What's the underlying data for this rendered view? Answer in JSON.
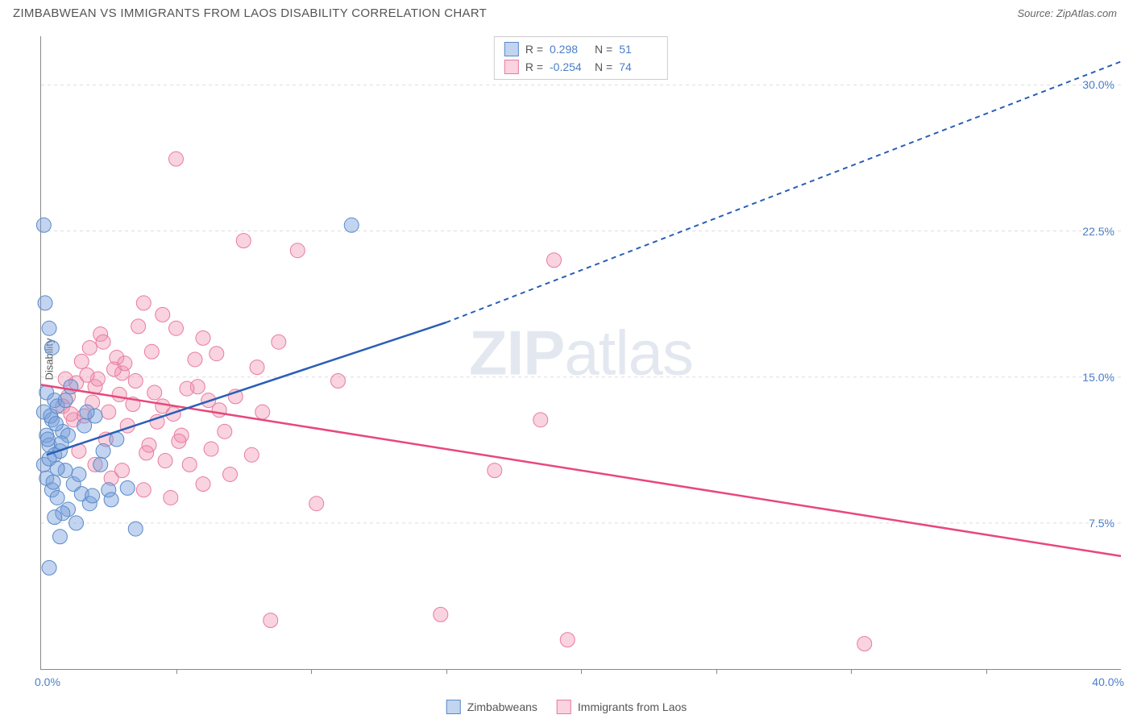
{
  "header": {
    "title": "ZIMBABWEAN VS IMMIGRANTS FROM LAOS DISABILITY CORRELATION CHART",
    "source": "Source: ZipAtlas.com"
  },
  "chart": {
    "type": "scatter",
    "ylabel": "Disability",
    "watermark_zip": "ZIP",
    "watermark_atlas": "atlas",
    "xlim": [
      0,
      40
    ],
    "ylim": [
      0,
      32.5
    ],
    "xtick_labels": [
      "0.0%",
      "40.0%"
    ],
    "xtick_positions_pct": [
      0,
      100
    ],
    "xtick_marks_pct": [
      12.5,
      25,
      37.5,
      50,
      62.5,
      75,
      87.5
    ],
    "ytick_labels": [
      "7.5%",
      "15.0%",
      "22.5%",
      "30.0%"
    ],
    "ytick_positions_pct": [
      23.08,
      46.15,
      69.23,
      92.31
    ],
    "grid_color": "#dddddd",
    "background_color": "#ffffff",
    "axis_color": "#888888",
    "label_color": "#4a7ec9",
    "text_color": "#555555",
    "series": [
      {
        "name": "Zimbabweans",
        "color_fill": "rgba(120,160,220,0.45)",
        "color_stroke": "#5a8ac9",
        "line_color": "#2a5fb5",
        "R": "0.298",
        "N": "51",
        "trend": {
          "x1": 0.2,
          "y1": 11.0,
          "x2": 15.0,
          "y2": 17.8,
          "x3": 40.0,
          "y3": 31.2
        },
        "points": [
          [
            0.1,
            22.8
          ],
          [
            0.3,
            17.5
          ],
          [
            0.15,
            18.8
          ],
          [
            0.4,
            16.5
          ],
          [
            0.2,
            14.2
          ],
          [
            0.5,
            13.8
          ],
          [
            0.1,
            13.2
          ],
          [
            0.4,
            12.8
          ],
          [
            0.6,
            13.5
          ],
          [
            0.2,
            12.0
          ],
          [
            0.8,
            12.2
          ],
          [
            0.3,
            11.5
          ],
          [
            0.5,
            11.0
          ],
          [
            0.1,
            10.5
          ],
          [
            0.7,
            11.2
          ],
          [
            0.3,
            10.8
          ],
          [
            0.9,
            10.2
          ],
          [
            0.2,
            9.8
          ],
          [
            1.2,
            9.5
          ],
          [
            0.4,
            9.2
          ],
          [
            1.5,
            9.0
          ],
          [
            0.6,
            8.8
          ],
          [
            1.8,
            8.5
          ],
          [
            1.0,
            8.2
          ],
          [
            2.2,
            10.5
          ],
          [
            0.8,
            8.0
          ],
          [
            2.5,
            9.2
          ],
          [
            1.3,
            7.5
          ],
          [
            0.3,
            5.2
          ],
          [
            2.8,
            11.8
          ],
          [
            3.2,
            9.3
          ],
          [
            1.6,
            12.5
          ],
          [
            0.9,
            13.8
          ],
          [
            2.0,
            13.0
          ],
          [
            1.1,
            14.5
          ],
          [
            0.5,
            7.8
          ],
          [
            1.4,
            10.0
          ],
          [
            0.7,
            6.8
          ],
          [
            3.5,
            7.2
          ],
          [
            1.9,
            8.9
          ],
          [
            2.3,
            11.2
          ],
          [
            0.25,
            11.8
          ],
          [
            0.6,
            10.3
          ],
          [
            1.0,
            12.0
          ],
          [
            0.35,
            13.0
          ],
          [
            11.5,
            22.8
          ],
          [
            0.45,
            9.6
          ],
          [
            1.7,
            13.2
          ],
          [
            0.55,
            12.6
          ],
          [
            2.6,
            8.7
          ],
          [
            0.75,
            11.6
          ]
        ]
      },
      {
        "name": "Immigrants from Laos",
        "color_fill": "rgba(240,145,175,0.40)",
        "color_stroke": "#e87ba0",
        "line_color": "#e8487a",
        "R": "-0.254",
        "N": "74",
        "trend": {
          "x1": 0.0,
          "y1": 14.6,
          "x2": 40.0,
          "y2": 5.8
        },
        "points": [
          [
            5.0,
            26.2
          ],
          [
            3.8,
            18.8
          ],
          [
            2.0,
            14.5
          ],
          [
            1.5,
            15.8
          ],
          [
            2.5,
            13.2
          ],
          [
            1.0,
            14.0
          ],
          [
            3.0,
            15.2
          ],
          [
            1.8,
            16.5
          ],
          [
            2.2,
            17.2
          ],
          [
            0.8,
            13.5
          ],
          [
            3.5,
            14.8
          ],
          [
            1.2,
            12.8
          ],
          [
            2.8,
            16.0
          ],
          [
            4.2,
            14.2
          ],
          [
            1.6,
            13.0
          ],
          [
            3.2,
            12.5
          ],
          [
            2.4,
            11.8
          ],
          [
            4.5,
            13.5
          ],
          [
            1.4,
            11.2
          ],
          [
            5.2,
            12.0
          ],
          [
            2.0,
            10.5
          ],
          [
            5.8,
            14.5
          ],
          [
            3.0,
            10.2
          ],
          [
            6.2,
            13.8
          ],
          [
            4.0,
            11.5
          ],
          [
            6.8,
            12.2
          ],
          [
            2.6,
            9.8
          ],
          [
            7.2,
            14.0
          ],
          [
            3.8,
            9.2
          ],
          [
            7.8,
            11.0
          ],
          [
            5.5,
            10.5
          ],
          [
            8.2,
            13.2
          ],
          [
            4.8,
            8.8
          ],
          [
            6.0,
            9.5
          ],
          [
            8.8,
            16.8
          ],
          [
            5.0,
            17.5
          ],
          [
            6.5,
            16.2
          ],
          [
            6.0,
            17.0
          ],
          [
            9.5,
            21.5
          ],
          [
            7.5,
            22.0
          ],
          [
            8.0,
            15.5
          ],
          [
            10.2,
            8.5
          ],
          [
            11.0,
            14.8
          ],
          [
            14.8,
            2.8
          ],
          [
            19.0,
            21.0
          ],
          [
            18.5,
            12.8
          ],
          [
            16.8,
            10.2
          ],
          [
            19.5,
            1.5
          ],
          [
            30.5,
            1.3
          ],
          [
            8.5,
            2.5
          ],
          [
            4.5,
            18.2
          ],
          [
            3.4,
            13.6
          ],
          [
            2.1,
            14.9
          ],
          [
            5.7,
            15.9
          ],
          [
            1.9,
            13.7
          ],
          [
            4.1,
            16.3
          ],
          [
            2.7,
            15.4
          ],
          [
            6.3,
            11.3
          ],
          [
            3.6,
            17.6
          ],
          [
            1.3,
            14.7
          ],
          [
            4.9,
            13.1
          ],
          [
            2.3,
            16.8
          ],
          [
            5.4,
            14.4
          ],
          [
            7.0,
            10.0
          ],
          [
            1.7,
            15.1
          ],
          [
            4.3,
            12.7
          ],
          [
            2.9,
            14.1
          ],
          [
            6.6,
            13.3
          ],
          [
            3.1,
            15.7
          ],
          [
            5.1,
            11.7
          ],
          [
            1.1,
            13.1
          ],
          [
            4.6,
            10.7
          ],
          [
            0.9,
            14.9
          ],
          [
            3.9,
            11.1
          ]
        ]
      }
    ],
    "marker_radius": 9
  },
  "legend_bottom": [
    {
      "label": "Zimbabweans",
      "fill": "rgba(120,160,220,0.45)",
      "stroke": "#5a8ac9"
    },
    {
      "label": "Immigrants from Laos",
      "fill": "rgba(240,145,175,0.40)",
      "stroke": "#e87ba0"
    }
  ]
}
